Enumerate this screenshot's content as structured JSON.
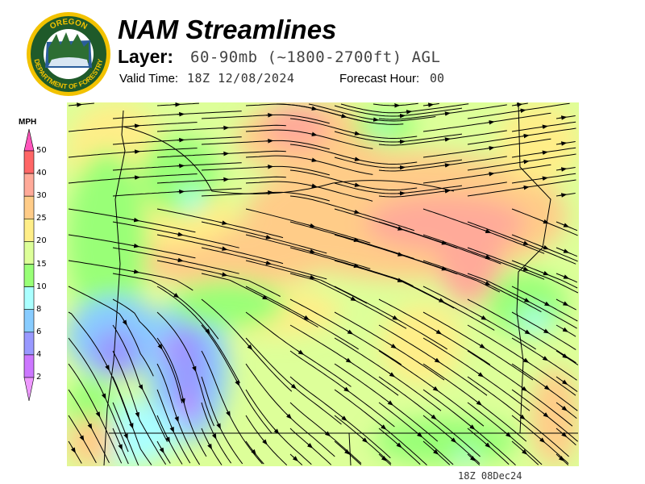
{
  "header": {
    "title": "NAM Streamlines",
    "layer_label": "Layer:",
    "layer_value": "60-90mb (~1800-2700ft) AGL",
    "valid_time_label": "Valid Time:",
    "valid_time_value": "18Z 12/08/2024",
    "forecast_hour_label": "Forecast Hour:",
    "forecast_hour_value": "00"
  },
  "logo": {
    "top_text": "OREGON",
    "bottom_text": "DEPARTMENT OF FORESTRY"
  },
  "legend": {
    "unit": "MPH",
    "ticks": [
      "50",
      "40",
      "30",
      "25",
      "20",
      "15",
      "10",
      "8",
      "6",
      "4",
      "2"
    ],
    "colors": [
      "#ff55bb",
      "#ff6666",
      "#ffaa99",
      "#ffcc88",
      "#ffee88",
      "#ddff99",
      "#99ff77",
      "#aaffff",
      "#88ccff",
      "#9999ff",
      "#cc77ff",
      "#ee99ff"
    ]
  },
  "footer": {
    "timestamp": "18Z 08Dec24"
  }
}
